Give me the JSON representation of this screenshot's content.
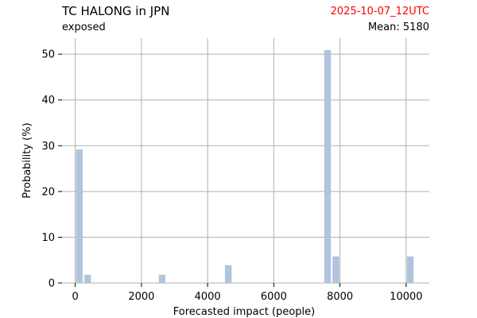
{
  "header": {
    "title": "TC HALONG in JPN",
    "subtitle": "exposed",
    "date": "2025-10-07_12UTC",
    "mean": "Mean: 5180",
    "date_color": "#ff0000"
  },
  "chart_data": {
    "type": "bar",
    "xlabel": "Forecasted impact (people)",
    "ylabel": "Probability (%)",
    "xlim": [
      -400,
      10700
    ],
    "ylim": [
      0,
      53.5
    ],
    "xticks": [
      0,
      2000,
      4000,
      6000,
      8000,
      10000
    ],
    "yticks": [
      0,
      10,
      20,
      30,
      40,
      50
    ],
    "bar_width": 250,
    "bars": [
      {
        "x": 125,
        "value": 29.2
      },
      {
        "x": 375,
        "value": 1.8
      },
      {
        "x": 2625,
        "value": 1.8
      },
      {
        "x": 4625,
        "value": 3.9
      },
      {
        "x": 7625,
        "value": 50.9
      },
      {
        "x": 7875,
        "value": 5.8
      },
      {
        "x": 10125,
        "value": 5.8
      }
    ],
    "bar_color": "#b0c4de",
    "grid": true,
    "grid_color": "#b0b0b0"
  }
}
